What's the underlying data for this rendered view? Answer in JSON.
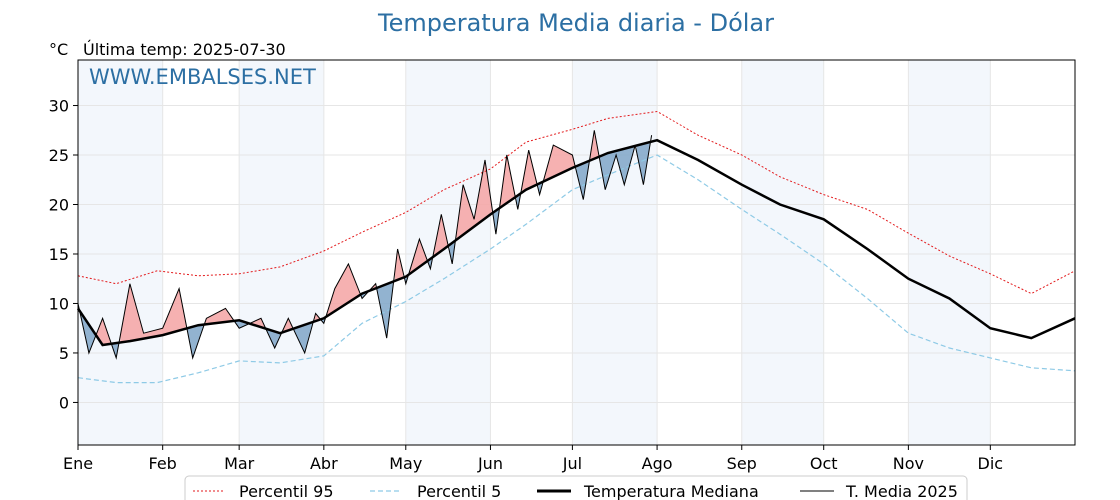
{
  "title": "Temperatura Media diaria - Dólar",
  "unit_label": "°C",
  "last_temp": "Última temp: 2025-07-30",
  "watermark": "WWW.EMBALSES.NET",
  "colors": {
    "p95": "#e31a1c",
    "p5": "#8ecae6",
    "median": "#000000",
    "current": "#000000",
    "warm_fill": "#f4a3a3",
    "warm_fill_strong": "#e34a4a",
    "cold_fill": "#7fa6c8",
    "cold_fill_strong": "#2f6fa8",
    "band": "#f3f7fc",
    "title": "#2c6fa3"
  },
  "chart_data": {
    "type": "line",
    "title": "Temperatura Media diaria - Dólar",
    "ylabel": "°C",
    "ylim": [
      -4.3,
      34.6
    ],
    "yticks": [
      0,
      5,
      10,
      15,
      20,
      25,
      30
    ],
    "months": [
      "Ene",
      "Feb",
      "Mar",
      "Abr",
      "May",
      "Jun",
      "Jul",
      "Ago",
      "Sep",
      "Oct",
      "Nov",
      "Dic"
    ],
    "month_starts_doy": [
      1,
      32,
      60,
      91,
      121,
      152,
      182,
      213,
      244,
      274,
      305,
      335
    ],
    "x_range_doy": [
      1,
      366
    ],
    "grid": true,
    "legend_placement": "bottom",
    "legend": [
      "Percentil 95",
      "Percentil 5",
      "Temperatura Mediana",
      "T. Media 2025"
    ],
    "series": [
      {
        "name": "Percentil 95",
        "style": "dotted-red",
        "points": [
          [
            1,
            12.8
          ],
          [
            15,
            12.0
          ],
          [
            30,
            13.3
          ],
          [
            45,
            12.8
          ],
          [
            60,
            13.0
          ],
          [
            75,
            13.7
          ],
          [
            91,
            15.3
          ],
          [
            105,
            17.2
          ],
          [
            121,
            19.2
          ],
          [
            135,
            21.5
          ],
          [
            152,
            23.6
          ],
          [
            165,
            26.3
          ],
          [
            182,
            27.6
          ],
          [
            195,
            28.7
          ],
          [
            213,
            29.4
          ],
          [
            228,
            27.0
          ],
          [
            244,
            25.0
          ],
          [
            258,
            22.8
          ],
          [
            274,
            21.0
          ],
          [
            290,
            19.5
          ],
          [
            305,
            17.1
          ],
          [
            320,
            14.8
          ],
          [
            335,
            13.0
          ],
          [
            350,
            11.0
          ],
          [
            366,
            13.3
          ]
        ]
      },
      {
        "name": "Percentil 5",
        "style": "dashed-lightblue",
        "points": [
          [
            1,
            2.5
          ],
          [
            15,
            2.0
          ],
          [
            30,
            2.0
          ],
          [
            45,
            3.0
          ],
          [
            60,
            4.2
          ],
          [
            75,
            4.0
          ],
          [
            91,
            4.7
          ],
          [
            105,
            8.0
          ],
          [
            121,
            10.2
          ],
          [
            135,
            12.5
          ],
          [
            152,
            15.5
          ],
          [
            165,
            18.0
          ],
          [
            182,
            21.5
          ],
          [
            195,
            23.0
          ],
          [
            213,
            25.0
          ],
          [
            228,
            22.5
          ],
          [
            244,
            19.5
          ],
          [
            258,
            17.0
          ],
          [
            274,
            14.0
          ],
          [
            290,
            10.5
          ],
          [
            305,
            7.0
          ],
          [
            320,
            5.5
          ],
          [
            335,
            4.5
          ],
          [
            350,
            3.5
          ],
          [
            366,
            3.2
          ]
        ]
      },
      {
        "name": "Temperatura Mediana",
        "style": "thick-black",
        "points": [
          [
            1,
            9.5
          ],
          [
            10,
            5.8
          ],
          [
            20,
            6.2
          ],
          [
            32,
            6.8
          ],
          [
            45,
            7.8
          ],
          [
            60,
            8.3
          ],
          [
            75,
            7.0
          ],
          [
            91,
            8.5
          ],
          [
            105,
            11.0
          ],
          [
            121,
            12.7
          ],
          [
            135,
            15.5
          ],
          [
            152,
            19.0
          ],
          [
            165,
            21.5
          ],
          [
            182,
            23.7
          ],
          [
            195,
            25.2
          ],
          [
            213,
            26.5
          ],
          [
            228,
            24.5
          ],
          [
            244,
            22.0
          ],
          [
            258,
            20.0
          ],
          [
            274,
            18.5
          ],
          [
            290,
            15.5
          ],
          [
            305,
            12.5
          ],
          [
            320,
            10.5
          ],
          [
            335,
            7.5
          ],
          [
            350,
            6.5
          ],
          [
            366,
            8.5
          ]
        ]
      },
      {
        "name": "T. Media 2025",
        "style": "thin-black",
        "points": [
          [
            1,
            10.0
          ],
          [
            5,
            5.0
          ],
          [
            10,
            8.5
          ],
          [
            15,
            4.5
          ],
          [
            20,
            12.0
          ],
          [
            25,
            7.0
          ],
          [
            32,
            7.5
          ],
          [
            38,
            11.5
          ],
          [
            43,
            4.5
          ],
          [
            48,
            8.5
          ],
          [
            55,
            9.5
          ],
          [
            60,
            7.5
          ],
          [
            68,
            8.5
          ],
          [
            73,
            5.5
          ],
          [
            78,
            8.5
          ],
          [
            84,
            5.0
          ],
          [
            88,
            9.0
          ],
          [
            91,
            8.0
          ],
          [
            95,
            11.5
          ],
          [
            100,
            14.0
          ],
          [
            105,
            10.5
          ],
          [
            110,
            12.0
          ],
          [
            114,
            6.5
          ],
          [
            118,
            15.5
          ],
          [
            121,
            12.0
          ],
          [
            126,
            16.5
          ],
          [
            130,
            13.5
          ],
          [
            134,
            19.0
          ],
          [
            138,
            14.0
          ],
          [
            142,
            22.0
          ],
          [
            146,
            18.5
          ],
          [
            150,
            24.5
          ],
          [
            154,
            17.0
          ],
          [
            158,
            25.0
          ],
          [
            162,
            19.5
          ],
          [
            166,
            25.5
          ],
          [
            170,
            21.0
          ],
          [
            175,
            26.0
          ],
          [
            182,
            25.0
          ],
          [
            186,
            20.5
          ],
          [
            190,
            27.5
          ],
          [
            194,
            21.5
          ],
          [
            198,
            25.0
          ],
          [
            201,
            22.0
          ],
          [
            205,
            26.0
          ],
          [
            208,
            22.0
          ],
          [
            211,
            27.0
          ]
        ]
      }
    ]
  },
  "legend_labels": {
    "p95": "Percentil 95",
    "p5": "Percentil 5",
    "median": "Temperatura Mediana",
    "current": "T. Media 2025"
  }
}
